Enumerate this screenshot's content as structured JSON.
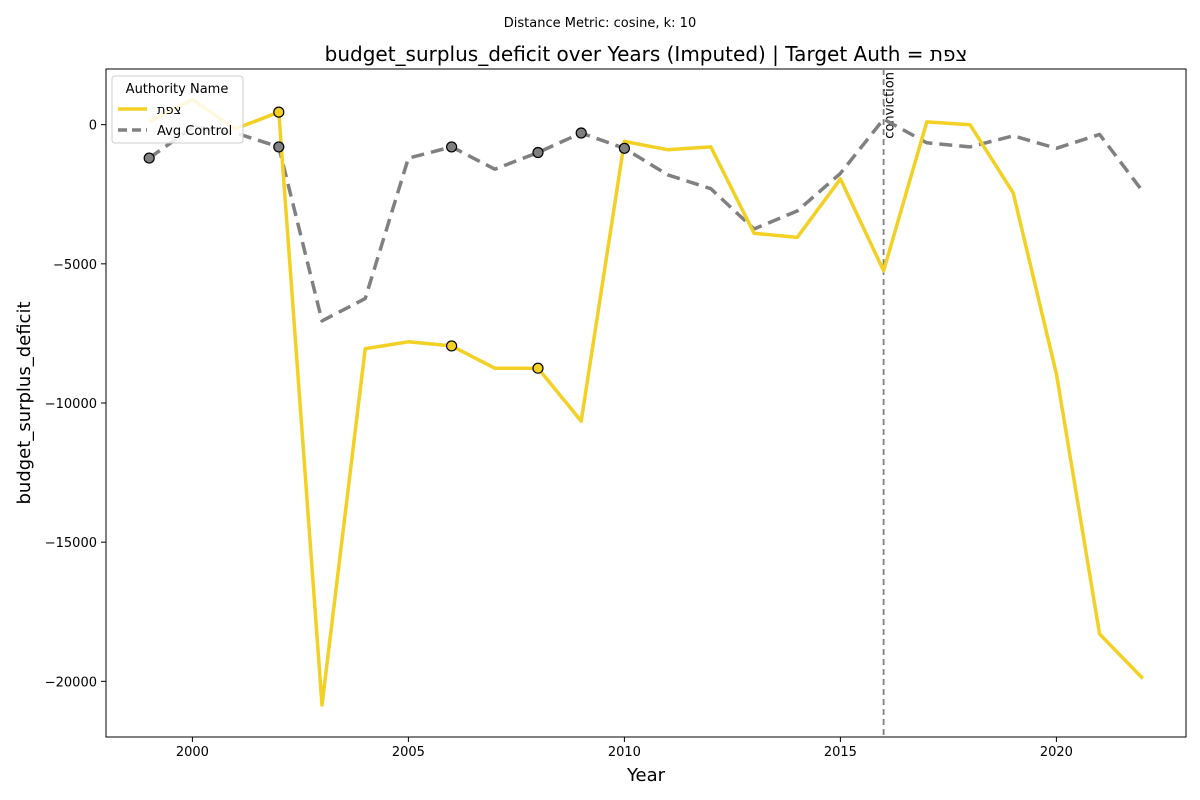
{
  "suptitle": "Distance Metric: cosine, k: 10",
  "chart_data": {
    "type": "line",
    "title": "budget_surplus_deficit over Years (Imputed) | Target Auth = צפת",
    "xlabel": "Year",
    "ylabel": "budget_surplus_deficit",
    "xlim": [
      1998,
      2023
    ],
    "ylim": [
      -22000,
      2000
    ],
    "x_ticks": [
      2000,
      2005,
      2010,
      2015,
      2020
    ],
    "y_ticks": [
      0,
      -5000,
      -10000,
      -15000,
      -20000
    ],
    "x_tick_labels": [
      "2000",
      "2005",
      "2010",
      "2015",
      "2020"
    ],
    "y_tick_labels": [
      "0",
      "−5000",
      "−10000",
      "−15000",
      "−20000"
    ],
    "grid": false,
    "legend": {
      "title": "Authority Name",
      "placement": "top-left"
    },
    "series": [
      {
        "name": "צפת",
        "color": "#f2d024",
        "style": "solid",
        "x": [
          1999,
          2000,
          2001,
          2002,
          2003,
          2004,
          2005,
          2006,
          2007,
          2008,
          2009,
          2010,
          2011,
          2012,
          2013,
          2014,
          2015,
          2016,
          2017,
          2018,
          2019,
          2020,
          2021,
          2022
        ],
        "values": [
          100,
          900,
          -150,
          450,
          -20850,
          -8050,
          -7800,
          -7950,
          -8750,
          -8750,
          -10650,
          -600,
          -900,
          -800,
          -3900,
          -4050,
          -1950,
          -5250,
          100,
          0,
          -2450,
          -8950,
          -18300,
          -19900
        ],
        "imputed_years": [
          2002,
          2006,
          2008
        ]
      },
      {
        "name": "Avg Control",
        "color": "#808080",
        "style": "dashed",
        "x": [
          1999,
          2000,
          2001,
          2002,
          2003,
          2004,
          2005,
          2006,
          2007,
          2008,
          2009,
          2010,
          2011,
          2012,
          2013,
          2014,
          2015,
          2016,
          2017,
          2018,
          2019,
          2020,
          2021,
          2022
        ],
        "values": [
          -1200,
          -100,
          -300,
          -800,
          -7050,
          -6250,
          -1200,
          -800,
          -1600,
          -1000,
          -300,
          -850,
          -1800,
          -2300,
          -3750,
          -3100,
          -1750,
          200,
          -650,
          -800,
          -400,
          -850,
          -350,
          -2400
        ],
        "imputed_years": [
          1999,
          2002,
          2006,
          2008,
          2009,
          2010
        ]
      }
    ],
    "annotations": [
      {
        "type": "vline",
        "x": 2016,
        "label": "conviction",
        "color": "#808080",
        "style": "dashed"
      }
    ]
  }
}
